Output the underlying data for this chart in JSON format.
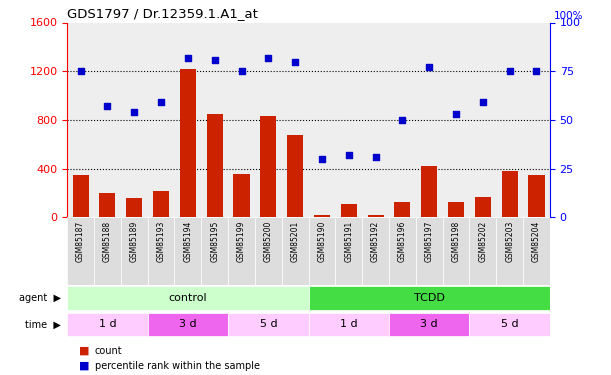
{
  "title": "GDS1797 / Dr.12359.1.A1_at",
  "samples": [
    "GSM85187",
    "GSM85188",
    "GSM85189",
    "GSM85193",
    "GSM85194",
    "GSM85195",
    "GSM85199",
    "GSM85200",
    "GSM85201",
    "GSM85190",
    "GSM85191",
    "GSM85192",
    "GSM85196",
    "GSM85197",
    "GSM85198",
    "GSM85202",
    "GSM85203",
    "GSM85204"
  ],
  "counts": [
    350,
    200,
    160,
    220,
    1220,
    850,
    360,
    830,
    680,
    20,
    110,
    20,
    130,
    420,
    130,
    170,
    380,
    350
  ],
  "percentiles": [
    75,
    57,
    54,
    59,
    82,
    81,
    75,
    82,
    80,
    30,
    32,
    31,
    50,
    77,
    53,
    59,
    75,
    75
  ],
  "bar_color": "#cc2200",
  "dot_color": "#0000cc",
  "agent_groups": [
    {
      "label": "control",
      "start": 0,
      "end": 9,
      "color": "#ccffcc"
    },
    {
      "label": "TCDD",
      "start": 9,
      "end": 18,
      "color": "#44dd44"
    }
  ],
  "time_groups": [
    {
      "label": "1 d",
      "start": 0,
      "end": 3,
      "color": "#ffccff"
    },
    {
      "label": "3 d",
      "start": 3,
      "end": 6,
      "color": "#ee66ee"
    },
    {
      "label": "5 d",
      "start": 6,
      "end": 9,
      "color": "#ffccff"
    },
    {
      "label": "1 d",
      "start": 9,
      "end": 12,
      "color": "#ffccff"
    },
    {
      "label": "3 d",
      "start": 12,
      "end": 15,
      "color": "#ee66ee"
    },
    {
      "label": "5 d",
      "start": 15,
      "end": 18,
      "color": "#ffccff"
    }
  ],
  "ylim_left": [
    0,
    1600
  ],
  "ylim_right": [
    0,
    100
  ],
  "yticks_left": [
    0,
    400,
    800,
    1200,
    1600
  ],
  "yticks_right": [
    0,
    25,
    50,
    75,
    100
  ],
  "legend_count": "count",
  "legend_pct": "percentile rank within the sample",
  "bg_color": "#ffffff",
  "panel_bg": "#eeeeee",
  "tick_label_bg": "#dddddd"
}
